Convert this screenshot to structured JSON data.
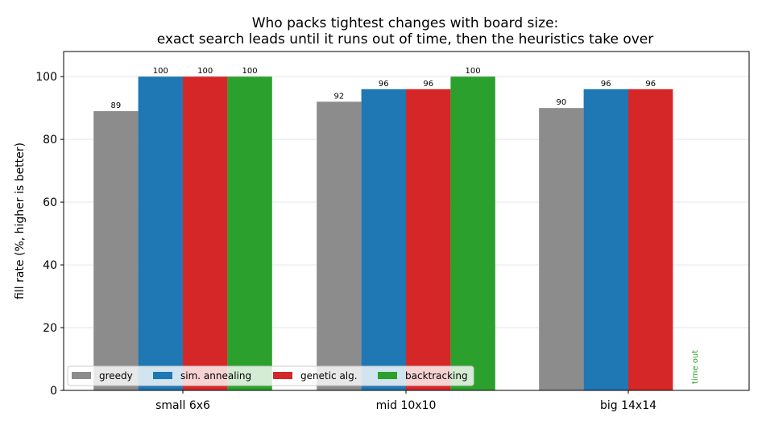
{
  "chart_data": {
    "type": "bar",
    "title_lines": [
      "Who packs tightest changes with board size:",
      "exact search leads until it runs out of time, then the heuristics take over"
    ],
    "xlabel": "",
    "ylabel": "fill rate (%, higher is better)",
    "ylim": [
      0,
      108
    ],
    "yticks": [
      0,
      20,
      40,
      60,
      80,
      100
    ],
    "grid": "horizontal",
    "legend_position": "lower-left",
    "categories": [
      "small 6x6",
      "mid 10x10",
      "big 14x14"
    ],
    "series": [
      {
        "name": "greedy",
        "color": "#8c8c8c",
        "values": [
          89,
          92,
          90
        ],
        "labels": [
          "89",
          "92",
          "90"
        ]
      },
      {
        "name": "sim. annealing",
        "color": "#1f77b4",
        "values": [
          100,
          96,
          96
        ],
        "labels": [
          "100",
          "96",
          "96"
        ]
      },
      {
        "name": "genetic alg.",
        "color": "#d62728",
        "values": [
          100,
          96,
          96
        ],
        "labels": [
          "100",
          "96",
          "96"
        ]
      },
      {
        "name": "backtracking",
        "color": "#2ca02c",
        "values": [
          100,
          100,
          null
        ],
        "labels": [
          "100",
          "100",
          null
        ]
      }
    ],
    "annotations": [
      {
        "text": "time out",
        "category": "big 14x14",
        "series": "backtracking",
        "color": "#2ca02c"
      }
    ]
  }
}
